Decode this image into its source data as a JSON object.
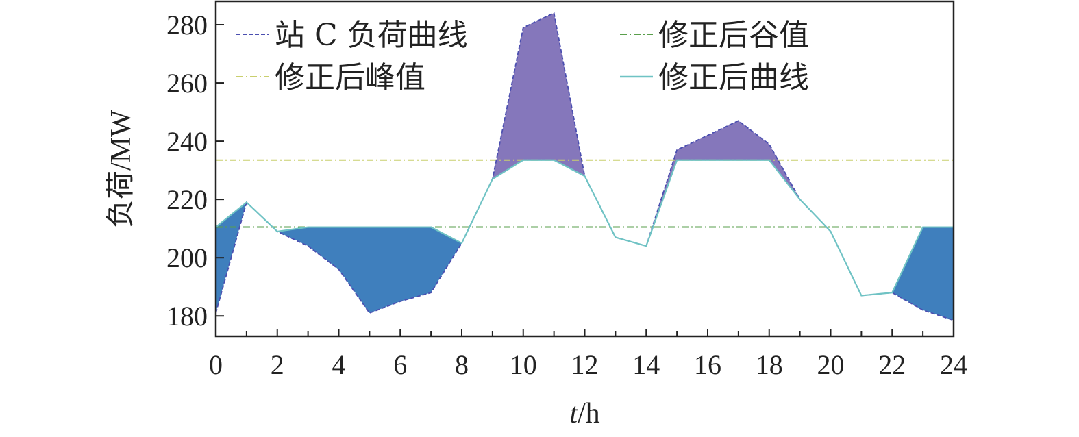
{
  "chart_data": {
    "type": "line",
    "title": "",
    "xlabel_italic": "t",
    "xlabel_rest": "/h",
    "ylabel": "负荷/MW",
    "xlim": [
      0,
      24
    ],
    "ylim": [
      173,
      288
    ],
    "x_ticks": [
      0,
      2,
      4,
      6,
      8,
      10,
      12,
      14,
      16,
      18,
      20,
      22,
      24
    ],
    "y_ticks": [
      180,
      200,
      220,
      240,
      260,
      280
    ],
    "x": [
      0,
      1,
      2,
      3,
      4,
      5,
      6,
      7,
      8,
      9,
      10,
      11,
      12,
      13,
      14,
      15,
      16,
      17,
      18,
      19,
      20,
      21,
      22,
      23,
      24
    ],
    "series": [
      {
        "name": "站 C 负荷曲线",
        "color": "#4b4fb0",
        "style": "dashed",
        "values": [
          181,
          219,
          209,
          204,
          196,
          181,
          185,
          188,
          205,
          227,
          279,
          284,
          228,
          207,
          204,
          237,
          242,
          247,
          239,
          220,
          209,
          187,
          188,
          182,
          178.5
        ]
      },
      {
        "name": "修正后曲线",
        "color": "#6fc3c4",
        "style": "solid",
        "values": [
          210.5,
          219,
          209,
          210.5,
          210.5,
          210.5,
          210.5,
          210.5,
          205,
          227,
          233.5,
          233.5,
          228,
          207,
          204,
          233.5,
          233.5,
          233.5,
          233.5,
          220,
          209,
          187,
          188,
          210.5,
          210.5
        ]
      }
    ],
    "peak_line": {
      "name": "修正后峰值",
      "value": 233.5,
      "color": "#c9cf6e"
    },
    "valley_line": {
      "name": "修正后谷值",
      "value": 210.5,
      "color": "#5a9f4c"
    },
    "fill_colors": {
      "peak_shaved": "#8577bb",
      "valley_filled": "#3f7fbd"
    },
    "legend": {
      "placement": "top",
      "entries": [
        {
          "label": "站 C 负荷曲线",
          "style": "dashed",
          "color": "#4b4fb0"
        },
        {
          "label": "修正后谷值",
          "style": "dashdot",
          "color": "#5a9f4c"
        },
        {
          "label": "修正后峰值",
          "style": "dashdot",
          "color": "#c9cf6e"
        },
        {
          "label": "修正后曲线",
          "style": "solid",
          "color": "#6fc3c4"
        }
      ]
    }
  }
}
